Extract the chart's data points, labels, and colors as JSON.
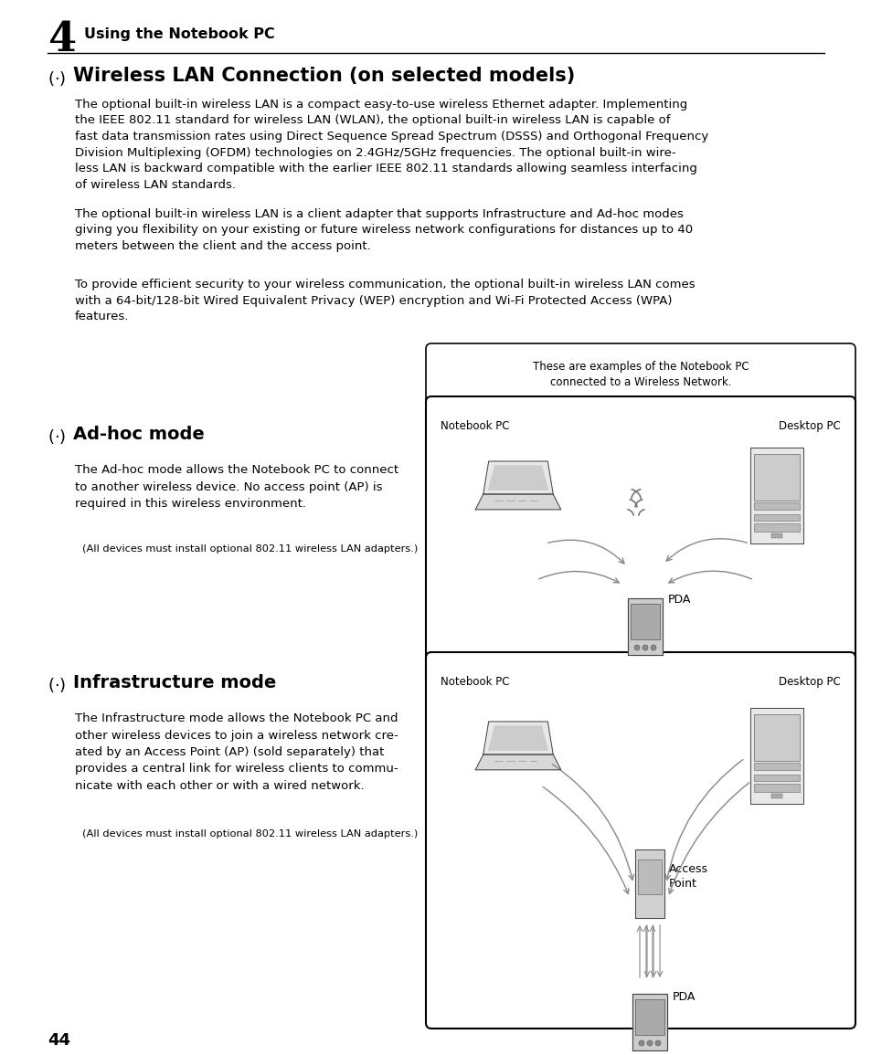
{
  "bg_color": "#ffffff",
  "page_number": "44",
  "chapter_num": "4",
  "chapter_title": "Using the Notebook PC",
  "section_title": "Wireless LAN Connection (on selected models)",
  "para1": "The optional built-in wireless LAN is a compact easy-to-use wireless Ethernet adapter. Implementing\nthe IEEE 802.11 standard for wireless LAN (WLAN), the optional built-in wireless LAN is capable of\nfast data transmission rates using Direct Sequence Spread Spectrum (DSSS) and Orthogonal Frequency\nDivision Multiplexing (OFDM) technologies on 2.4GHz/5GHz frequencies. The optional built-in wire-\nless LAN is backward compatible with the earlier IEEE 802.11 standards allowing seamless interfacing\nof wireless LAN standards.",
  "para2": "The optional built-in wireless LAN is a client adapter that supports Infrastructure and Ad-hoc modes\ngiving you flexibility on your existing or future wireless network configurations for distances up to 40\nmeters between the client and the access point.",
  "para3": "To provide efficient security to your wireless communication, the optional built-in wireless LAN comes\nwith a 64-bit/128-bit Wired Equivalent Privacy (WEP) encryption and Wi-Fi Protected Access (WPA)\nfeatures.",
  "callout_text": "These are examples of the Notebook PC\nconnected to a Wireless Network.",
  "adhoc_title": "Ad-hoc mode",
  "adhoc_para": "The Ad-hoc mode allows the Notebook PC to connect\nto another wireless device. No access point (AP) is\nrequired in this wireless environment.",
  "adhoc_note": "(All devices must install optional 802.11 wireless LAN adapters.)",
  "infra_title": "Infrastructure mode",
  "infra_para": "The Infrastructure mode allows the Notebook PC and\nother wireless devices to join a wireless network cre-\nated by an Access Point (AP) (sold separately) that\nprovides a central link for wireless clients to commu-\nnicate with each other or with a wired network.",
  "infra_note": "(All devices must install optional 802.11 wireless LAN adapters.)",
  "notebook_pc_label": "Notebook PC",
  "desktop_pc_label": "Desktop PC",
  "pda_label": "PDA",
  "access_point_label": "Access\nPoint",
  "text_color": "#000000",
  "border_color": "#000000",
  "gray_color": "#888888",
  "light_gray": "#cccccc",
  "mid_gray": "#aaaaaa"
}
